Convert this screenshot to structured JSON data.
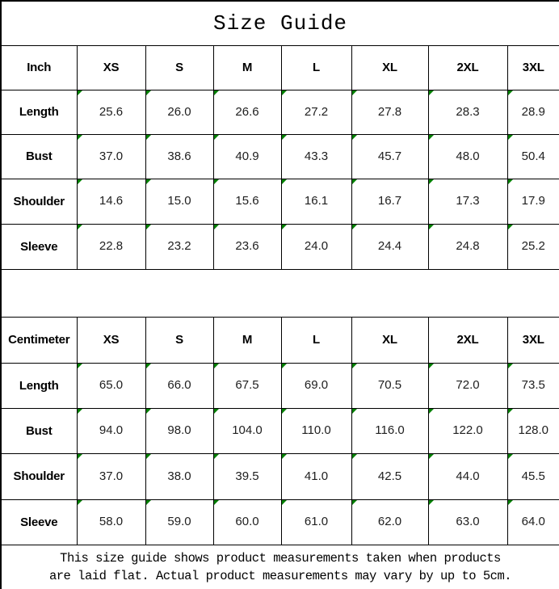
{
  "title": "Size Guide",
  "size_headers": [
    "XS",
    "S",
    "M",
    "L",
    "XL",
    "2XL",
    "3XL"
  ],
  "inch_table": {
    "unit_label": "Inch",
    "rows": [
      {
        "label": "Length",
        "values": [
          "25.6",
          "26.0",
          "26.6",
          "27.2",
          "27.8",
          "28.3",
          "28.9"
        ]
      },
      {
        "label": "Bust",
        "values": [
          "37.0",
          "38.6",
          "40.9",
          "43.3",
          "45.7",
          "48.0",
          "50.4"
        ]
      },
      {
        "label": "Shoulder",
        "values": [
          "14.6",
          "15.0",
          "15.6",
          "16.1",
          "16.7",
          "17.3",
          "17.9"
        ]
      },
      {
        "label": "Sleeve",
        "values": [
          "22.8",
          "23.2",
          "23.6",
          "24.0",
          "24.4",
          "24.8",
          "25.2"
        ]
      }
    ]
  },
  "cm_table": {
    "unit_label": "Centimeter",
    "rows": [
      {
        "label": "Length",
        "values": [
          "65.0",
          "66.0",
          "67.5",
          "69.0",
          "70.5",
          "72.0",
          "73.5"
        ]
      },
      {
        "label": "Bust",
        "values": [
          "94.0",
          "98.0",
          "104.0",
          "110.0",
          "116.0",
          "122.0",
          "128.0"
        ]
      },
      {
        "label": "Shoulder",
        "values": [
          "37.0",
          "38.0",
          "39.5",
          "41.0",
          "42.5",
          "44.0",
          "45.5"
        ]
      },
      {
        "label": "Sleeve",
        "values": [
          "58.0",
          "59.0",
          "60.0",
          "61.0",
          "62.0",
          "63.0",
          "64.0"
        ]
      }
    ]
  },
  "footnote": {
    "line1": "This size guide shows product measurements taken when products",
    "line2": "are laid flat. Actual product measurements may vary by up to 5cm."
  },
  "colors": {
    "indicator_green": "#008000",
    "border_black": "#000000"
  }
}
